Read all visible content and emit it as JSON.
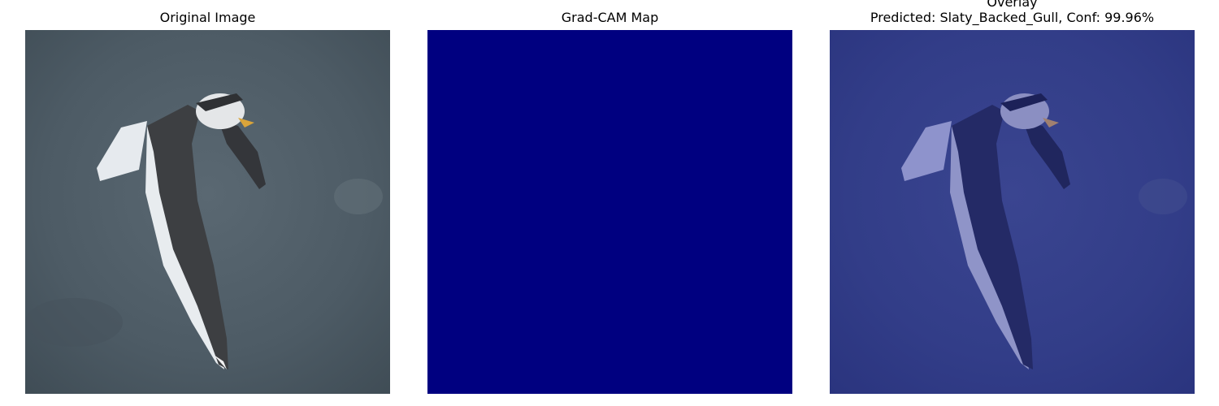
{
  "panels": [
    {
      "title": "Original Image"
    },
    {
      "title": "Grad-CAM Map"
    },
    {
      "title": "Overlay",
      "subtitle": "Predicted: Slaty_Backed_Gull, Conf: 99.96%"
    }
  ],
  "colors": {
    "background_water": "#4e5c66",
    "gradcam_fill": "#000080",
    "overlay_tint": "#1c2a86",
    "gull_back": "#3d3f42",
    "gull_white": "#e8ecef",
    "gull_beak": "#d9a43a"
  }
}
